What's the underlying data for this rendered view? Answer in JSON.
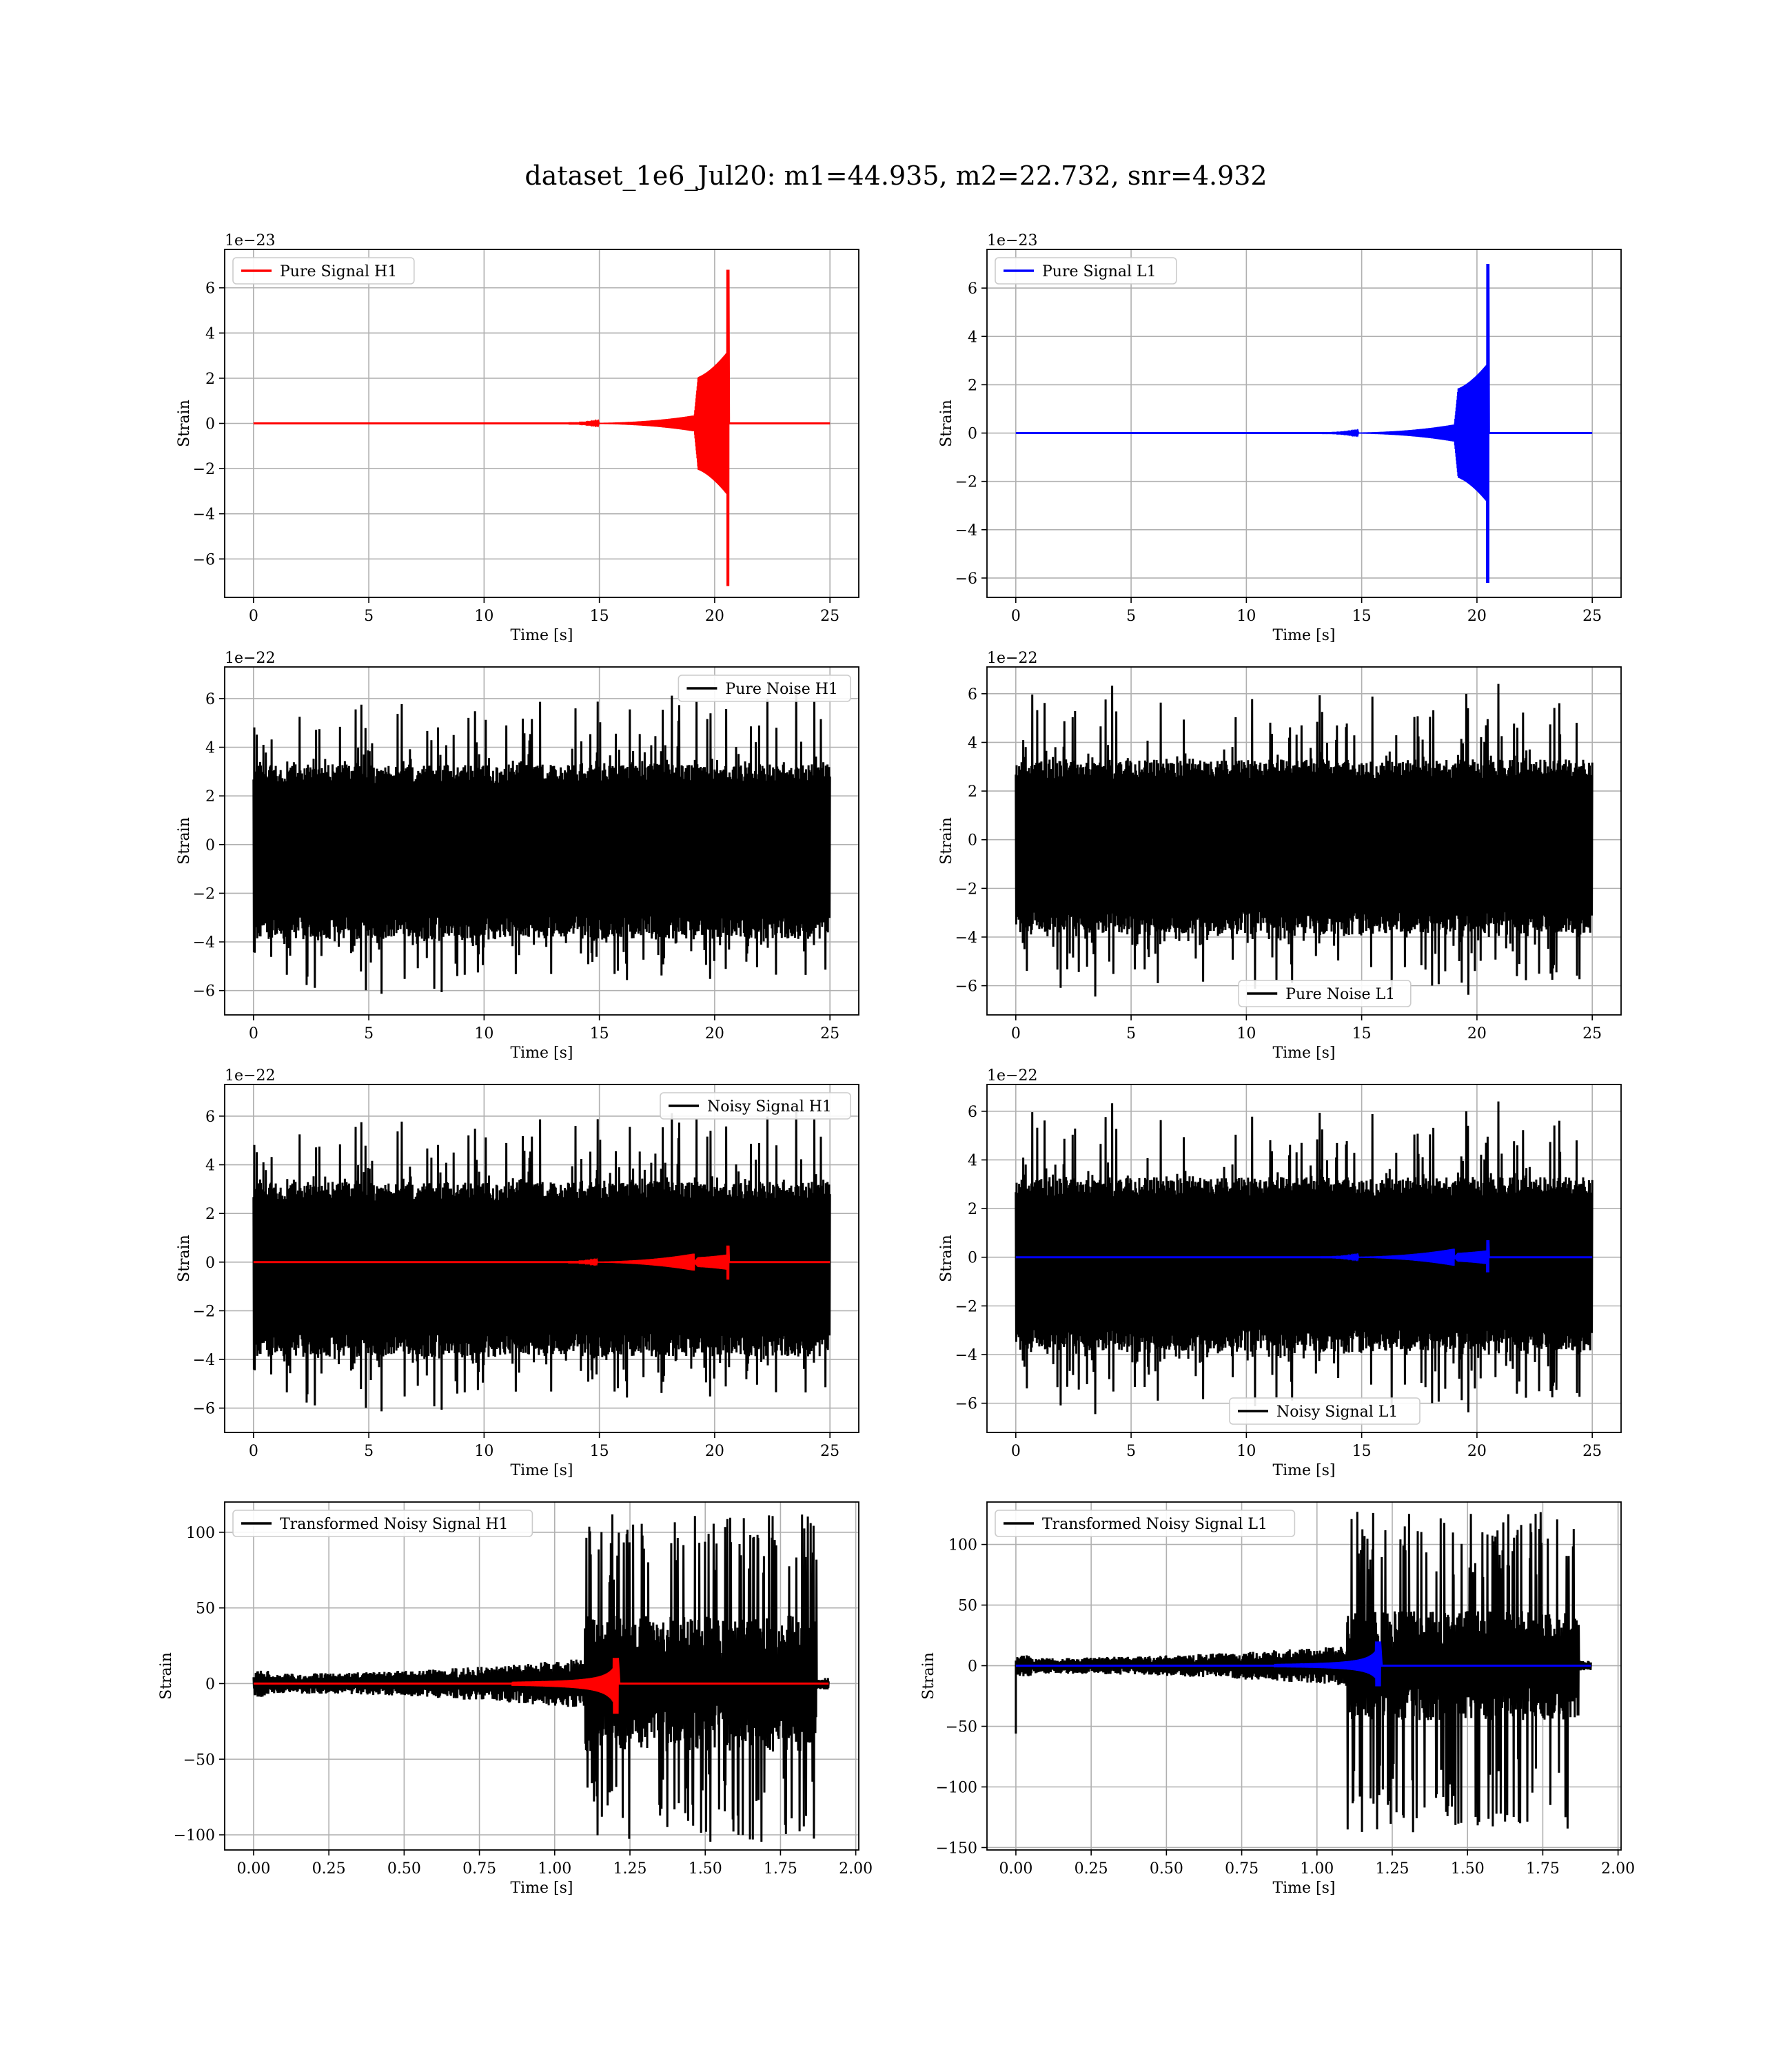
{
  "figure": {
    "title": "dataset_1e6_Jul20: m1=44.935, m2=22.732, snr=4.932"
  },
  "colors": {
    "h1": "#ff0000",
    "l1": "#0000ff",
    "noise": "#000000"
  },
  "chart_data": [
    {
      "type": "line",
      "name": "pure-signal-h1",
      "xlabel": "Time [s]",
      "ylabel": "Strain",
      "offset_text": "1e−23",
      "xlim": [
        -1.25,
        26.25
      ],
      "ylim": [
        -7.7,
        7.7
      ],
      "xticks": [
        0,
        5,
        10,
        15,
        20,
        25
      ],
      "xtick_labels": [
        "0",
        "5",
        "10",
        "15",
        "20",
        "25"
      ],
      "yticks": [
        -6,
        -4,
        -2,
        0,
        2,
        4,
        6
      ],
      "ytick_labels": [
        "−6",
        "−4",
        "−2",
        "0",
        "2",
        "4",
        "6"
      ],
      "grid": true,
      "legend": "top-left",
      "series": [
        {
          "name": "Pure Signal H1",
          "color": "#ff0000",
          "kind": "chirp",
          "xmax": 25,
          "merger": 20.6,
          "peak_pos": 6.8,
          "peak_neg": -7.2,
          "amp_early": 2.0,
          "amp_late": 3.2
        }
      ]
    },
    {
      "type": "line",
      "name": "pure-signal-l1",
      "xlabel": "Time [s]",
      "ylabel": "Strain",
      "offset_text": "1e−23",
      "xlim": [
        -1.25,
        26.25
      ],
      "ylim": [
        -6.8,
        7.6
      ],
      "xticks": [
        0,
        5,
        10,
        15,
        20,
        25
      ],
      "xtick_labels": [
        "0",
        "5",
        "10",
        "15",
        "20",
        "25"
      ],
      "yticks": [
        -6,
        -4,
        -2,
        0,
        2,
        4,
        6
      ],
      "ytick_labels": [
        "−6",
        "−4",
        "−2",
        "0",
        "2",
        "4",
        "6"
      ],
      "grid": true,
      "legend": "top-left",
      "series": [
        {
          "name": "Pure Signal L1",
          "color": "#0000ff",
          "kind": "chirp",
          "xmax": 25,
          "merger": 20.5,
          "peak_pos": 7.0,
          "peak_neg": -6.2,
          "amp_early": 1.8,
          "amp_late": 2.9
        }
      ]
    },
    {
      "type": "line",
      "name": "pure-noise-h1",
      "xlabel": "Time [s]",
      "ylabel": "Strain",
      "offset_text": "1e−22",
      "xlim": [
        -1.25,
        26.25
      ],
      "ylim": [
        -7.0,
        7.3
      ],
      "xticks": [
        0,
        5,
        10,
        15,
        20,
        25
      ],
      "xtick_labels": [
        "0",
        "5",
        "10",
        "15",
        "20",
        "25"
      ],
      "yticks": [
        -6,
        -4,
        -2,
        0,
        2,
        4,
        6
      ],
      "ytick_labels": [
        "−6",
        "−4",
        "−2",
        "0",
        "2",
        "4",
        "6"
      ],
      "grid": true,
      "legend": "top-right",
      "series": [
        {
          "name": "Pure Noise H1",
          "color": "#000000",
          "kind": "noise",
          "xmax": 25,
          "band_pos": 3.3,
          "band_neg": -3.9,
          "spike_pos": 6.7,
          "spike_neg": -6.3,
          "seed": 11
        }
      ]
    },
    {
      "type": "line",
      "name": "pure-noise-l1",
      "xlabel": "Time [s]",
      "ylabel": "Strain",
      "offset_text": "1e−22",
      "xlim": [
        -1.25,
        26.25
      ],
      "ylim": [
        -7.2,
        7.1
      ],
      "xticks": [
        0,
        5,
        10,
        15,
        20,
        25
      ],
      "xtick_labels": [
        "0",
        "5",
        "10",
        "15",
        "20",
        "25"
      ],
      "yticks": [
        -6,
        -4,
        -2,
        0,
        2,
        4,
        6
      ],
      "ytick_labels": [
        "−6",
        "−4",
        "−2",
        "0",
        "2",
        "4",
        "6"
      ],
      "grid": true,
      "legend": "bottom-center",
      "series": [
        {
          "name": "Pure Noise L1",
          "color": "#000000",
          "kind": "noise",
          "xmax": 25,
          "band_pos": 3.3,
          "band_neg": -3.9,
          "spike_pos": 6.5,
          "spike_neg": -6.6,
          "seed": 23
        }
      ]
    },
    {
      "type": "line",
      "name": "noisy-signal-h1",
      "xlabel": "Time [s]",
      "ylabel": "Strain",
      "offset_text": "1e−22",
      "xlim": [
        -1.25,
        26.25
      ],
      "ylim": [
        -7.0,
        7.3
      ],
      "xticks": [
        0,
        5,
        10,
        15,
        20,
        25
      ],
      "xtick_labels": [
        "0",
        "5",
        "10",
        "15",
        "20",
        "25"
      ],
      "yticks": [
        -6,
        -4,
        -2,
        0,
        2,
        4,
        6
      ],
      "ytick_labels": [
        "−6",
        "−4",
        "−2",
        "0",
        "2",
        "4",
        "6"
      ],
      "grid": true,
      "legend": "top-right",
      "series": [
        {
          "name": "Noisy Signal H1",
          "color": "#000000",
          "kind": "noise",
          "xmax": 25,
          "band_pos": 3.3,
          "band_neg": -3.9,
          "spike_pos": 6.7,
          "spike_neg": -6.3,
          "seed": 11
        },
        {
          "name": "",
          "color": "#ff0000",
          "kind": "chirp",
          "xmax": 25,
          "merger": 20.6,
          "peak_pos": 0.68,
          "peak_neg": -0.72,
          "amp_early": 0.2,
          "amp_late": 0.32
        }
      ]
    },
    {
      "type": "line",
      "name": "noisy-signal-l1",
      "xlabel": "Time [s]",
      "ylabel": "Strain",
      "offset_text": "1e−22",
      "xlim": [
        -1.25,
        26.25
      ],
      "ylim": [
        -7.2,
        7.1
      ],
      "xticks": [
        0,
        5,
        10,
        15,
        20,
        25
      ],
      "xtick_labels": [
        "0",
        "5",
        "10",
        "15",
        "20",
        "25"
      ],
      "yticks": [
        -6,
        -4,
        -2,
        0,
        2,
        4,
        6
      ],
      "ytick_labels": [
        "−6",
        "−4",
        "−2",
        "0",
        "2",
        "4",
        "6"
      ],
      "grid": true,
      "legend": "bottom-center",
      "series": [
        {
          "name": "Noisy Signal L1",
          "color": "#000000",
          "kind": "noise",
          "xmax": 25,
          "band_pos": 3.3,
          "band_neg": -3.9,
          "spike_pos": 6.5,
          "spike_neg": -6.6,
          "seed": 23
        },
        {
          "name": "",
          "color": "#0000ff",
          "kind": "chirp",
          "xmax": 25,
          "merger": 20.5,
          "peak_pos": 0.7,
          "peak_neg": -0.62,
          "amp_early": 0.18,
          "amp_late": 0.29
        }
      ]
    },
    {
      "type": "line",
      "name": "transformed-noisy-signal-h1",
      "xlabel": "Time [s]",
      "ylabel": "Strain",
      "offset_text": "",
      "xlim": [
        -0.096,
        2.01
      ],
      "ylim": [
        -110,
        120
      ],
      "xticks": [
        0,
        0.25,
        0.5,
        0.75,
        1.0,
        1.25,
        1.5,
        1.75,
        2.0
      ],
      "xtick_labels": [
        "0.00",
        "0.25",
        "0.50",
        "0.75",
        "1.00",
        "1.25",
        "1.50",
        "1.75",
        "2.00"
      ],
      "yticks": [
        -100,
        -50,
        0,
        50,
        100
      ],
      "ytick_labels": [
        "−100",
        "−50",
        "0",
        "50",
        "100"
      ],
      "grid": true,
      "legend": "top-left",
      "series": [
        {
          "name": "Transformed Noisy Signal H1",
          "color": "#000000",
          "kind": "tnoise",
          "xmax": 1.91,
          "t_rise": 1.1,
          "t_end": 1.87,
          "early_amp": 8,
          "late_amp": 45,
          "spike_pos": 112,
          "spike_neg": -105,
          "seed": 31
        },
        {
          "name": "",
          "color": "#ff0000",
          "kind": "tchirp",
          "xmax": 1.91,
          "merger": 1.21,
          "peak_pos": 17,
          "peak_neg": -20
        }
      ]
    },
    {
      "type": "line",
      "name": "transformed-noisy-signal-l1",
      "xlabel": "Time [s]",
      "ylabel": "Strain",
      "offset_text": "",
      "xlim": [
        -0.096,
        2.01
      ],
      "ylim": [
        -152,
        135
      ],
      "xticks": [
        0,
        0.25,
        0.5,
        0.75,
        1.0,
        1.25,
        1.5,
        1.75,
        2.0
      ],
      "xtick_labels": [
        "0.00",
        "0.25",
        "0.50",
        "0.75",
        "1.00",
        "1.25",
        "1.50",
        "1.75",
        "2.00"
      ],
      "yticks": [
        -150,
        -100,
        -50,
        0,
        50,
        100
      ],
      "ytick_labels": [
        "−150",
        "−100",
        "−50",
        "0",
        "50",
        "100"
      ],
      "grid": true,
      "legend": "top-left",
      "series": [
        {
          "name": "Transformed Noisy Signal L1",
          "color": "#000000",
          "kind": "tnoise",
          "xmax": 1.91,
          "t_rise": 1.1,
          "t_end": 1.87,
          "early_amp": 8,
          "late_amp": 45,
          "spike_pos": 127,
          "spike_neg": -138,
          "start_dip": -56,
          "seed": 47
        },
        {
          "name": "",
          "color": "#0000ff",
          "kind": "tchirp",
          "xmax": 1.91,
          "merger": 1.21,
          "peak_pos": 20,
          "peak_neg": -17
        }
      ]
    }
  ]
}
